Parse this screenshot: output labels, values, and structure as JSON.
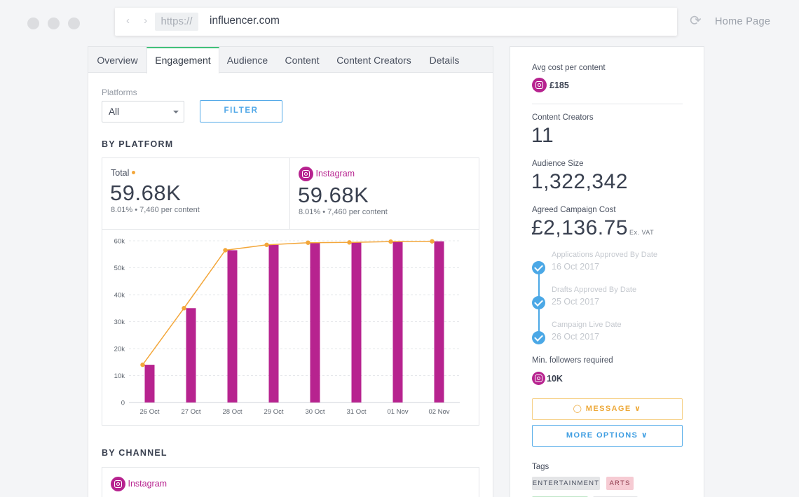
{
  "browser": {
    "protocol": "https://",
    "host": "influencer.com",
    "nav_arrows": "‹ ›",
    "home_label": "Home Page",
    "reload_glyph": "⟳"
  },
  "tabs": [
    "Overview",
    "Engagement",
    "Audience",
    "Content",
    "Content Creators",
    "Details"
  ],
  "active_tab": "Engagement",
  "filters": {
    "platforms_label": "Platforms",
    "platform_value": "All",
    "filter_button": "FILTER"
  },
  "by_platform": {
    "title": "BY PLATFORM",
    "total": {
      "label": "Total",
      "value": "59.68K",
      "sub": "8.01% • 7,460 per content"
    },
    "instagram": {
      "label": "Instagram",
      "value": "59.68K",
      "sub": "8.01% • 7,460 per content"
    }
  },
  "chart_data": {
    "type": "bar",
    "categories": [
      "26 Oct",
      "27 Oct",
      "28 Oct",
      "29 Oct",
      "30 Oct",
      "31 Oct",
      "01 Nov",
      "02 Nov"
    ],
    "series": [
      {
        "type": "bar",
        "values": [
          14000,
          35000,
          56500,
          58500,
          59300,
          59400,
          59700,
          59800
        ],
        "color": "#b7238f"
      },
      {
        "type": "line",
        "values": [
          14000,
          35000,
          56500,
          58500,
          59300,
          59400,
          59700,
          59800
        ],
        "color": "#f3a73b"
      }
    ],
    "ylim": [
      0,
      60000
    ],
    "yticks": [
      0,
      10000,
      20000,
      30000,
      40000,
      50000,
      60000
    ],
    "ytick_labels": [
      "0",
      "10k",
      "20k",
      "30k",
      "40k",
      "50k",
      "60k"
    ],
    "grid": true
  },
  "by_channel": {
    "title": "BY CHANNEL",
    "first_channel": "Instagram"
  },
  "side": {
    "avg_cost_label": "Avg cost per content",
    "avg_cost_value": "£185",
    "creators_label": "Content Creators",
    "creators_value": "11",
    "audience_label": "Audience Size",
    "audience_value": "1,322,342",
    "cost_label": "Agreed Campaign Cost",
    "cost_value": "£2,136.75",
    "cost_suffix": "Ex. VAT",
    "timeline": [
      {
        "label": "Applications Approved By Date",
        "date": "16 Oct 2017"
      },
      {
        "label": "Drafts Approved By Date",
        "date": "25 Oct 2017"
      },
      {
        "label": "Campaign Live Date",
        "date": "26 Oct 2017"
      }
    ],
    "min_followers_label": "Min. followers required",
    "min_followers_value": "10K",
    "message_button": "◯ MESSAGE ∨",
    "more_options_button": "MORE OPTIONS ∨",
    "tags_label": "Tags",
    "tags": [
      "ENTERTAINMENT",
      "ARTS"
    ]
  },
  "colors": {
    "brand_instagram": "#b7238f",
    "accent_line": "#f3a73b",
    "primary_blue": "#53a9e8",
    "active_tab_green": "#41c07a"
  }
}
